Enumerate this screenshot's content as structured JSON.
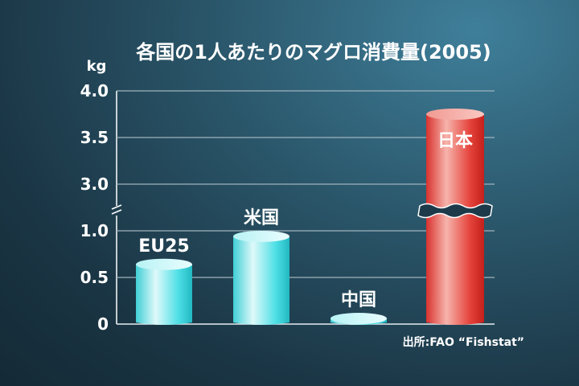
{
  "chart_data": {
    "type": "bar",
    "title": "各国の1人あたりのマグロ消費量(2005)",
    "ylabel": "kg",
    "yticks": [
      "0",
      "0.5",
      "1.0",
      "3.0",
      "3.5",
      "4.0"
    ],
    "broken_axis": {
      "lower_range": [
        0,
        1.0
      ],
      "upper_range": [
        3.0,
        4.0
      ]
    },
    "categories": [
      "EU25",
      "米国",
      "中国",
      "日本"
    ],
    "values": [
      0.64,
      0.94,
      0.06,
      3.75
    ],
    "bar_colors": [
      "#5fe3e6",
      "#5fe3e6",
      "#5fe3e6",
      "#e8453e"
    ],
    "grid": true,
    "source": "出所:FAO “Fishstat”"
  }
}
